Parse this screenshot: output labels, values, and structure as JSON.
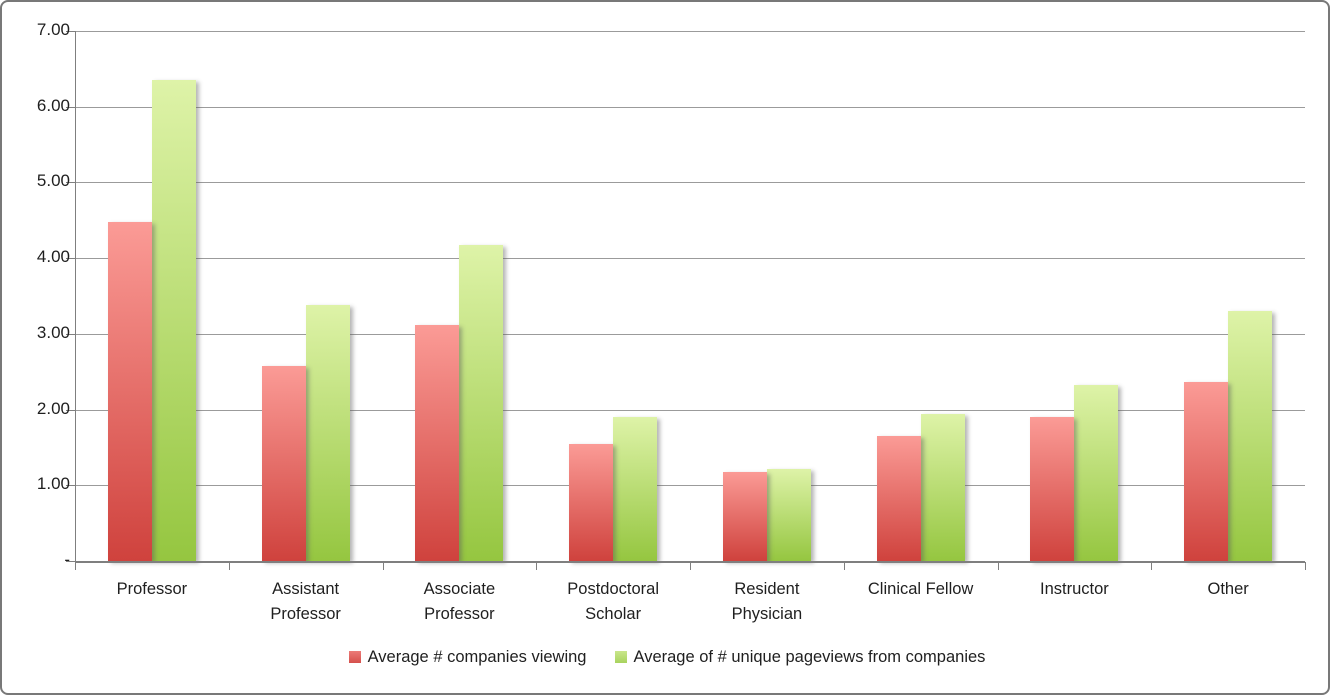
{
  "chart_data": {
    "type": "bar",
    "title": "",
    "xlabel": "",
    "ylabel": "",
    "ylim": [
      0,
      7
    ],
    "grid": true,
    "legend_position": "bottom",
    "y_ticks": [
      {
        "value": 7,
        "label": "7.00"
      },
      {
        "value": 6,
        "label": "6.00"
      },
      {
        "value": 5,
        "label": "5.00"
      },
      {
        "value": 4,
        "label": "4.00"
      },
      {
        "value": 3,
        "label": "3.00"
      },
      {
        "value": 2,
        "label": "2.00"
      },
      {
        "value": 1,
        "label": "1.00"
      },
      {
        "value": 0,
        "label": "-"
      }
    ],
    "categories": [
      {
        "label": "Professor",
        "lines": [
          "Professor"
        ]
      },
      {
        "label": "Assistant Professor",
        "lines": [
          "Assistant",
          "Professor"
        ]
      },
      {
        "label": "Associate Professor",
        "lines": [
          "Associate",
          "Professor"
        ]
      },
      {
        "label": "Postdoctoral Scholar",
        "lines": [
          "Postdoctoral",
          "Scholar"
        ]
      },
      {
        "label": "Resident Physician",
        "lines": [
          "Resident",
          "Physician"
        ]
      },
      {
        "label": "Clinical Fellow",
        "lines": [
          "Clinical Fellow"
        ]
      },
      {
        "label": "Instructor",
        "lines": [
          "Instructor"
        ]
      },
      {
        "label": "Other",
        "lines": [
          "Other"
        ]
      }
    ],
    "series": [
      {
        "name": "Average # companies viewing",
        "values": [
          4.48,
          2.58,
          3.12,
          1.54,
          1.18,
          1.65,
          1.9,
          2.36
        ],
        "color_top": "#fb9b96",
        "color_bottom": "#cf423d",
        "legend_color_top": "#ec7b78",
        "legend_color_bottom": "#d5504c"
      },
      {
        "name": "Average of # unique pageviews from companies",
        "values": [
          6.35,
          3.38,
          4.17,
          1.9,
          1.22,
          1.94,
          2.33,
          3.3
        ],
        "color_top": "#def3a8",
        "color_bottom": "#95c640",
        "legend_color_top": "#c9e68b",
        "legend_color_bottom": "#a8d35e"
      }
    ],
    "colors": {
      "gridline": "#9b9b9b",
      "axis": "#7f7f7f",
      "text": "#1f1f1f",
      "frame_border": "#787878",
      "background": "#ffffff"
    }
  }
}
